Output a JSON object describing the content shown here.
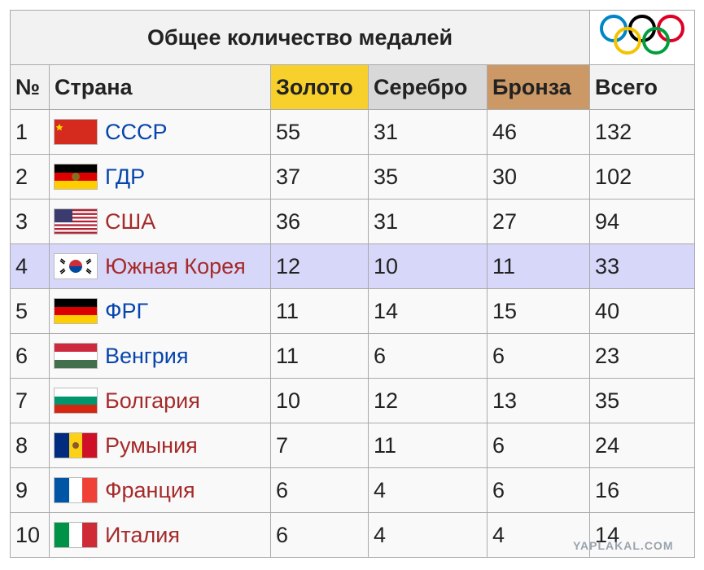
{
  "header": {
    "title": "Общее количество медалей"
  },
  "table": {
    "columns": [
      "№",
      "Страна",
      "Золото",
      "Серебро",
      "Бронза",
      "Всего"
    ],
    "rows": [
      [
        1,
        "СССР",
        55,
        31,
        46,
        132
      ],
      [
        2,
        "ГДР",
        37,
        35,
        30,
        102
      ],
      [
        3,
        "США",
        36,
        31,
        27,
        94
      ],
      [
        4,
        "Южная Корея",
        12,
        10,
        11,
        33
      ],
      [
        5,
        "ФРГ",
        11,
        14,
        15,
        40
      ],
      [
        6,
        "Венгрия",
        11,
        6,
        6,
        23
      ],
      [
        7,
        "Болгария",
        10,
        12,
        13,
        35
      ],
      [
        8,
        "Румыния",
        7,
        11,
        6,
        24
      ],
      [
        9,
        "Франция",
        6,
        4,
        6,
        16
      ],
      [
        10,
        "Италия",
        6,
        4,
        4,
        14
      ]
    ],
    "link_colors": [
      "#0645ad",
      "#0645ad",
      "#a52a2a",
      "#a52a2a",
      "#0645ad",
      "#0645ad",
      "#a52a2a",
      "#a52a2a",
      "#a52a2a",
      "#a52a2a"
    ]
  },
  "watermark": "YAPLAKAL.COM"
}
